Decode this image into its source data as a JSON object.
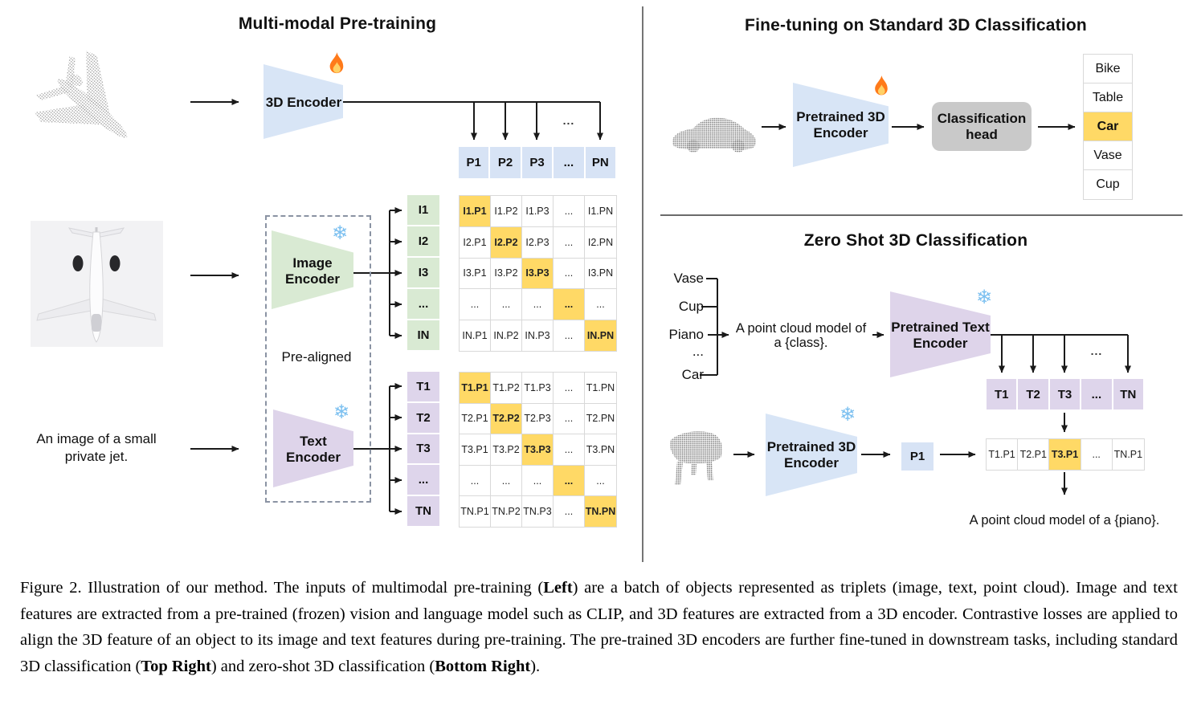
{
  "colors": {
    "highlight": "#ffd966",
    "encoder_blue": "#d8e5f6",
    "encoder_green": "#d9ead3",
    "encoder_purple": "#ded4ea",
    "head_gray": "#c9c9c9"
  },
  "icons": {
    "fire": "fire-icon",
    "snowflake": "snowflake-icon",
    "snowflake_glyph": "❄"
  },
  "panels": {
    "pretraining": {
      "title": "Multi-modal Pre-training",
      "encoder_3d": "3D Encoder",
      "image_encoder": [
        "Image",
        "Encoder"
      ],
      "text_encoder": [
        "Text",
        "Encoder"
      ],
      "pre_aligned": "Pre-aligned",
      "image_caption": [
        "An image of a small",
        "private jet."
      ],
      "line_ellipsis": "...",
      "p_header": [
        {
          "t": "P1"
        },
        {
          "t": "P2"
        },
        {
          "t": "P3"
        },
        {
          "t": "..."
        },
        {
          "t": "PN"
        }
      ],
      "i_labels": [
        {
          "t": "I1"
        },
        {
          "t": "I2"
        },
        {
          "t": "I3"
        },
        {
          "t": "..."
        },
        {
          "t": "IN"
        }
      ],
      "t_labels": [
        {
          "t": "T1"
        },
        {
          "t": "T2"
        },
        {
          "t": "T3"
        },
        {
          "t": "..."
        },
        {
          "t": "TN"
        }
      ],
      "i_matrix": [
        {
          "t": "I1.P1",
          "h": true
        },
        {
          "t": "I1.P2"
        },
        {
          "t": "I1.P3"
        },
        {
          "t": "..."
        },
        {
          "t": "I1.PN"
        },
        {
          "t": "I2.P1"
        },
        {
          "t": "I2.P2",
          "h": true
        },
        {
          "t": "I2.P3"
        },
        {
          "t": "..."
        },
        {
          "t": "I2.PN"
        },
        {
          "t": "I3.P1"
        },
        {
          "t": "I3.P2"
        },
        {
          "t": "I3.P3",
          "h": true
        },
        {
          "t": "..."
        },
        {
          "t": "I3.PN"
        },
        {
          "t": "..."
        },
        {
          "t": "..."
        },
        {
          "t": "..."
        },
        {
          "t": "...",
          "h": true
        },
        {
          "t": "..."
        },
        {
          "t": "IN.P1"
        },
        {
          "t": "IN.P2"
        },
        {
          "t": "IN.P3"
        },
        {
          "t": "..."
        },
        {
          "t": "IN.PN",
          "h": true
        }
      ],
      "t_matrix": [
        {
          "t": "T1.P1",
          "h": true
        },
        {
          "t": "T1.P2"
        },
        {
          "t": "T1.P3"
        },
        {
          "t": "..."
        },
        {
          "t": "T1.PN"
        },
        {
          "t": "T2.P1"
        },
        {
          "t": "T2.P2",
          "h": true
        },
        {
          "t": "T2.P3"
        },
        {
          "t": "..."
        },
        {
          "t": "T2.PN"
        },
        {
          "t": "T3.P1"
        },
        {
          "t": "T3.P2"
        },
        {
          "t": "T3.P3",
          "h": true
        },
        {
          "t": "..."
        },
        {
          "t": "T3.PN"
        },
        {
          "t": "..."
        },
        {
          "t": "..."
        },
        {
          "t": "..."
        },
        {
          "t": "...",
          "h": true
        },
        {
          "t": "..."
        },
        {
          "t": "TN.P1"
        },
        {
          "t": "TN.P2"
        },
        {
          "t": "TN.P3"
        },
        {
          "t": "..."
        },
        {
          "t": "TN.PN",
          "h": true
        }
      ]
    },
    "finetune": {
      "title": "Fine-tuning on Standard 3D Classification",
      "encoder": [
        "Pretrained 3D",
        "Encoder"
      ],
      "head": [
        "Classification",
        "head"
      ],
      "classes": [
        {
          "t": "Bike"
        },
        {
          "t": "Table"
        },
        {
          "t": "Car",
          "h": true
        },
        {
          "t": "Vase"
        },
        {
          "t": "Cup"
        }
      ]
    },
    "zeroshot": {
      "title": "Zero Shot 3D Classification",
      "class_labels": [
        "Vase",
        "Cup",
        "Piano",
        "...",
        "Car"
      ],
      "prompt": [
        "A point cloud model of",
        "a {class}."
      ],
      "text_encoder": [
        "Pretrained Text",
        "Encoder"
      ],
      "encoder_3d": [
        "Pretrained 3D",
        "Encoder"
      ],
      "line_ellipsis": "...",
      "t_header": [
        {
          "t": "T1"
        },
        {
          "t": "T2"
        },
        {
          "t": "T3"
        },
        {
          "t": "..."
        },
        {
          "t": "TN"
        }
      ],
      "p1": "P1",
      "result_row": [
        {
          "t": "T1.P1"
        },
        {
          "t": "T2.P1"
        },
        {
          "t": "T3.P1",
          "h": true
        },
        {
          "t": "..."
        },
        {
          "t": "TN.P1"
        }
      ],
      "result_caption": "A point cloud model of a {piano}."
    }
  },
  "caption": {
    "segments": [
      {
        "text": "Figure 2. Illustration of our method.  The inputs of multimodal pre-training (",
        "bold": false
      },
      {
        "text": "Left",
        "bold": true
      },
      {
        "text": ") are a batch of objects represented as triplets (image, text, point cloud).  Image and text features are extracted from a pre-trained (frozen) vision and language model such as CLIP, and 3D features are extracted from a 3D encoder.  Contrastive losses are applied to align the 3D feature of an object to its image and text features during pre-training.  The pre-trained 3D encoders are further fine-tuned in downstream tasks, including standard 3D classification (",
        "bold": false
      },
      {
        "text": "Top Right",
        "bold": true
      },
      {
        "text": ") and zero-shot 3D classification (",
        "bold": false
      },
      {
        "text": "Bottom Right",
        "bold": true
      },
      {
        "text": ").",
        "bold": false
      }
    ]
  }
}
